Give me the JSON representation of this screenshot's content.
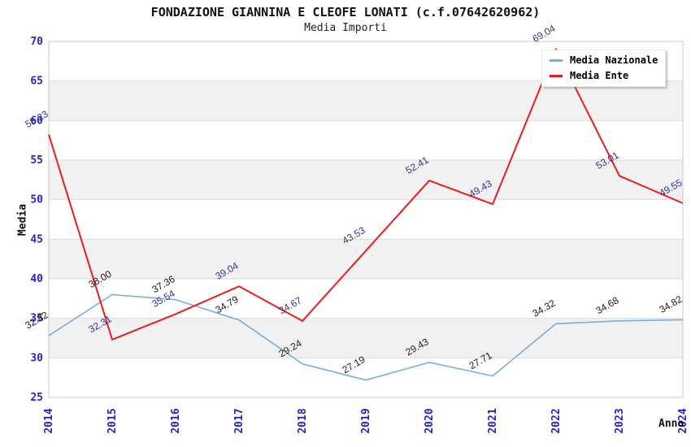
{
  "header": {
    "title": "FONDAZIONE GIANNINA E CLEOFE LONATI (c.f.07642620962)",
    "subtitle": "Media Importi"
  },
  "chart_data": {
    "type": "line",
    "x": [
      "2014",
      "2015",
      "2016",
      "2017",
      "2018",
      "2019",
      "2020",
      "2021",
      "2022",
      "2023",
      "2024"
    ],
    "xlabel": "Anno",
    "ylabel": "Media",
    "ylim": [
      25,
      70
    ],
    "yticks": [
      25,
      30,
      35,
      40,
      45,
      50,
      55,
      60,
      65,
      70
    ],
    "grid": "horizontal gridlines with alternating shaded bands",
    "legend_position": "top-right",
    "point_labels": "each point labeled with value, rotated ~30deg",
    "series": [
      {
        "name": "Media Nazionale",
        "color": "#79AEDF",
        "label_color": "#1a1a1a",
        "values": [
          32.82,
          38.0,
          37.36,
          34.79,
          29.24,
          27.19,
          29.43,
          27.71,
          34.32,
          34.68,
          34.82
        ]
      },
      {
        "name": "Media Ente",
        "color": "#EE1C1C",
        "label_color": "#32329A",
        "values": [
          58.23,
          32.31,
          35.54,
          39.04,
          34.67,
          43.53,
          52.41,
          49.43,
          69.04,
          53.01,
          49.55
        ]
      }
    ]
  },
  "colors": {
    "tick_label": "#2222DD",
    "band_gray": "#F1F1F1",
    "gridline": "#DCDCDC",
    "frame": "#C8C8C8",
    "background": "#FFFFFF"
  }
}
